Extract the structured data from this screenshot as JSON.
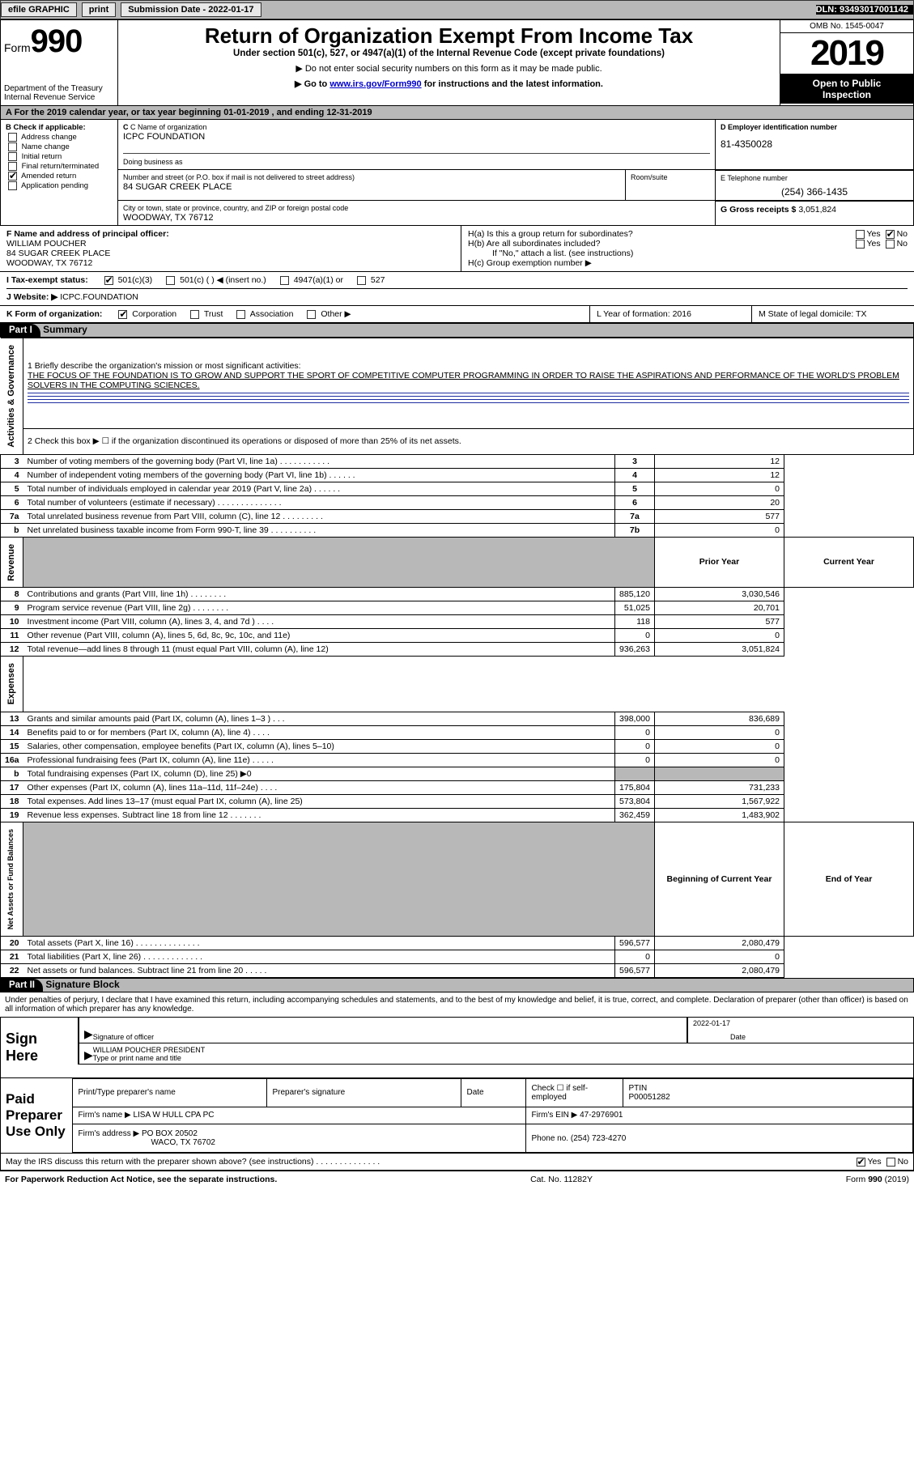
{
  "topbar": {
    "efile": "efile GRAPHIC",
    "print": "print",
    "sub_date_label": "Submission Date - 2022-01-17",
    "dln": "DLN: 93493017001142"
  },
  "header": {
    "form_label": "Form",
    "form_num": "990",
    "dept": "Department of the Treasury",
    "irs": "Internal Revenue Service",
    "title": "Return of Organization Exempt From Income Tax",
    "subtitle": "Under section 501(c), 527, or 4947(a)(1) of the Internal Revenue Code (except private foundations)",
    "note1": "▶ Do not enter social security numbers on this form as it may be made public.",
    "note2_pre": "▶ Go to ",
    "note2_link": "www.irs.gov/Form990",
    "note2_post": " for instructions and the latest information.",
    "omb": "OMB No. 1545-0047",
    "year": "2019",
    "inspect1": "Open to Public",
    "inspect2": "Inspection"
  },
  "a_line": {
    "text": "A For the 2019 calendar year, or tax year beginning 01-01-2019   , and ending 12-31-2019"
  },
  "box_b": {
    "title": "B Check if applicable:",
    "items": [
      "Address change",
      "Name change",
      "Initial return",
      "Final return/terminated",
      "Amended return",
      "Application pending"
    ],
    "checked_idx": 4
  },
  "box_c": {
    "name_label": "C Name of organization",
    "name": "ICPC FOUNDATION",
    "dba_label": "Doing business as",
    "dba": "",
    "addr_label": "Number and street (or P.O. box if mail is not delivered to street address)",
    "addr": "84 SUGAR CREEK PLACE",
    "room_label": "Room/suite",
    "city_label": "City or town, state or province, country, and ZIP or foreign postal code",
    "city": "WOODWAY, TX  76712"
  },
  "box_d": {
    "label": "D Employer identification number",
    "value": "81-4350028"
  },
  "box_e": {
    "label": "E Telephone number",
    "value": "(254) 366-1435"
  },
  "box_g": {
    "label": "G Gross receipts $",
    "value": "3,051,824"
  },
  "box_f": {
    "label": "F Name and address of principal officer:",
    "name": "WILLIAM POUCHER",
    "addr1": "84 SUGAR CREEK PLACE",
    "addr2": "WOODWAY, TX  76712"
  },
  "box_h": {
    "ha": "H(a)  Is this a group return for subordinates?",
    "hb": "H(b)  Are all subordinates included?",
    "hb_note": "If \"No,\" attach a list. (see instructions)",
    "hc": "H(c)  Group exemption number ▶",
    "ha_checked": "No"
  },
  "row_i": {
    "label": "I   Tax-exempt status:",
    "opts": [
      "501(c)(3)",
      "501(c) (  ) ◀ (insert no.)",
      "4947(a)(1) or",
      "527"
    ],
    "checked_idx": 0
  },
  "row_j": {
    "label": "J   Website: ▶",
    "value": "ICPC.FOUNDATION"
  },
  "row_k": {
    "label": "K Form of organization:",
    "opts": [
      "Corporation",
      "Trust",
      "Association",
      "Other ▶"
    ],
    "checked_idx": 0
  },
  "row_lm": {
    "l": "L Year of formation: 2016",
    "m": "M State of legal domicile: TX"
  },
  "part1": {
    "bar": "Part I",
    "title": "Summary",
    "q1": "1  Briefly describe the organization's mission or most significant activities:",
    "mission": "THE FOCUS OF THE FOUNDATION IS TO GROW AND SUPPORT THE SPORT OF COMPETITIVE COMPUTER PROGRAMMING IN ORDER TO RAISE THE ASPIRATIONS AND PERFORMANCE OF THE WORLD'S PROBLEM SOLVERS IN THE COMPUTING SCIENCES.",
    "q2": "2   Check this box ▶ ☐  if the organization discontinued its operations or disposed of more than 25% of its net assets.",
    "sections": {
      "gov": "Activities & Governance",
      "rev": "Revenue",
      "exp": "Expenses",
      "net": "Net Assets or Fund Balances"
    },
    "lines": [
      {
        "n": "3",
        "t": "Number of voting members of the governing body (Part VI, line 1a)  .   .   .   .   .   .   .   .   .   .   .",
        "box": "3",
        "v": "12"
      },
      {
        "n": "4",
        "t": "Number of independent voting members of the governing body (Part VI, line 1b)  .   .   .   .   .   .",
        "box": "4",
        "v": "12"
      },
      {
        "n": "5",
        "t": "Total number of individuals employed in calendar year 2019 (Part V, line 2a)  .   .   .   .   .   .",
        "box": "5",
        "v": "0"
      },
      {
        "n": "6",
        "t": "Total number of volunteers (estimate if necessary)  .   .   .   .   .   .   .   .   .   .   .   .   .   .",
        "box": "6",
        "v": "20"
      },
      {
        "n": "7a",
        "t": "Total unrelated business revenue from Part VIII, column (C), line 12  .   .   .   .   .   .   .   .   .",
        "box": "7a",
        "v": "577"
      },
      {
        "n": "b",
        "t": "Net unrelated business taxable income from Form 990-T, line 39  .   .   .   .   .   .   .   .   .   .",
        "box": "7b",
        "v": "0"
      }
    ],
    "col_headers": {
      "prior": "Prior Year",
      "current": "Current Year"
    },
    "revenue": [
      {
        "n": "8",
        "t": "Contributions and grants (Part VIII, line 1h)  .   .   .   .   .   .   .   .",
        "p": "885,120",
        "c": "3,030,546"
      },
      {
        "n": "9",
        "t": "Program service revenue (Part VIII, line 2g)  .   .   .   .   .   .   .   .",
        "p": "51,025",
        "c": "20,701"
      },
      {
        "n": "10",
        "t": "Investment income (Part VIII, column (A), lines 3, 4, and 7d )  .   .   .   .",
        "p": "118",
        "c": "577"
      },
      {
        "n": "11",
        "t": "Other revenue (Part VIII, column (A), lines 5, 6d, 8c, 9c, 10c, and 11e)",
        "p": "0",
        "c": "0"
      },
      {
        "n": "12",
        "t": "Total revenue—add lines 8 through 11 (must equal Part VIII, column (A), line 12)",
        "p": "936,263",
        "c": "3,051,824"
      }
    ],
    "expenses": [
      {
        "n": "13",
        "t": "Grants and similar amounts paid (Part IX, column (A), lines 1–3 )  .   .   .",
        "p": "398,000",
        "c": "836,689"
      },
      {
        "n": "14",
        "t": "Benefits paid to or for members (Part IX, column (A), line 4)  .   .   .   .",
        "p": "0",
        "c": "0"
      },
      {
        "n": "15",
        "t": "Salaries, other compensation, employee benefits (Part IX, column (A), lines 5–10)",
        "p": "0",
        "c": "0"
      },
      {
        "n": "16a",
        "t": "Professional fundraising fees (Part IX, column (A), line 11e)  .   .   .   .   .",
        "p": "0",
        "c": "0"
      },
      {
        "n": "b",
        "t": "Total fundraising expenses (Part IX, column (D), line 25) ▶0",
        "p": "",
        "c": "",
        "shaded": true
      },
      {
        "n": "17",
        "t": "Other expenses (Part IX, column (A), lines 11a–11d, 11f–24e)  .   .   .   .",
        "p": "175,804",
        "c": "731,233"
      },
      {
        "n": "18",
        "t": "Total expenses. Add lines 13–17 (must equal Part IX, column (A), line 25)",
        "p": "573,804",
        "c": "1,567,922"
      },
      {
        "n": "19",
        "t": "Revenue less expenses. Subtract line 18 from line 12  .   .   .   .   .   .   .",
        "p": "362,459",
        "c": "1,483,902"
      }
    ],
    "net_headers": {
      "begin": "Beginning of Current Year",
      "end": "End of Year"
    },
    "netassets": [
      {
        "n": "20",
        "t": "Total assets (Part X, line 16)  .   .   .   .   .   .   .   .   .   .   .   .   .   .",
        "p": "596,577",
        "c": "2,080,479"
      },
      {
        "n": "21",
        "t": "Total liabilities (Part X, line 26)  .   .   .   .   .   .   .   .   .   .   .   .   .",
        "p": "0",
        "c": "0"
      },
      {
        "n": "22",
        "t": "Net assets or fund balances. Subtract line 21 from line 20  .   .   .   .   .",
        "p": "596,577",
        "c": "2,080,479"
      }
    ]
  },
  "part2": {
    "bar": "Part II",
    "title": "Signature Block",
    "decl": "Under penalties of perjury, I declare that I have examined this return, including accompanying schedules and statements, and to the best of my knowledge and belief, it is true, correct, and complete. Declaration of preparer (other than officer) is based on all information of which preparer has any knowledge.",
    "sign_here": "Sign Here",
    "sig_officer": "Signature of officer",
    "date": "Date",
    "date_val": "2022-01-17",
    "name_title": "Type or print name and title",
    "name_val": "WILLIAM POUCHER  PRESIDENT",
    "paid": "Paid Preparer Use Only",
    "p_name_lbl": "Print/Type preparer's name",
    "p_sig_lbl": "Preparer's signature",
    "p_date_lbl": "Date",
    "p_check_lbl": "Check ☐ if self-employed",
    "ptin_lbl": "PTIN",
    "ptin": "P00051282",
    "firm_name_lbl": "Firm's name     ▶",
    "firm_name": "LISA W HULL CPA PC",
    "firm_ein_lbl": "Firm's EIN ▶",
    "firm_ein": "47-2976901",
    "firm_addr_lbl": "Firm's address ▶",
    "firm_addr1": "PO BOX 20502",
    "firm_addr2": "WACO, TX  76702",
    "firm_phone_lbl": "Phone no.",
    "firm_phone": "(254) 723-4270",
    "discuss": "May the IRS discuss this return with the preparer shown above? (see instructions)  .   .   .   .   .   .   .   .   .   .   .   .   .   .",
    "discuss_yes": true
  },
  "footer": {
    "left": "For Paperwork Reduction Act Notice, see the separate instructions.",
    "mid": "Cat. No. 11282Y",
    "right": "Form 990 (2019)"
  },
  "colors": {
    "gray": "#b8b8b8",
    "link": "#0000cc",
    "ruleblue": "#2030a0"
  }
}
